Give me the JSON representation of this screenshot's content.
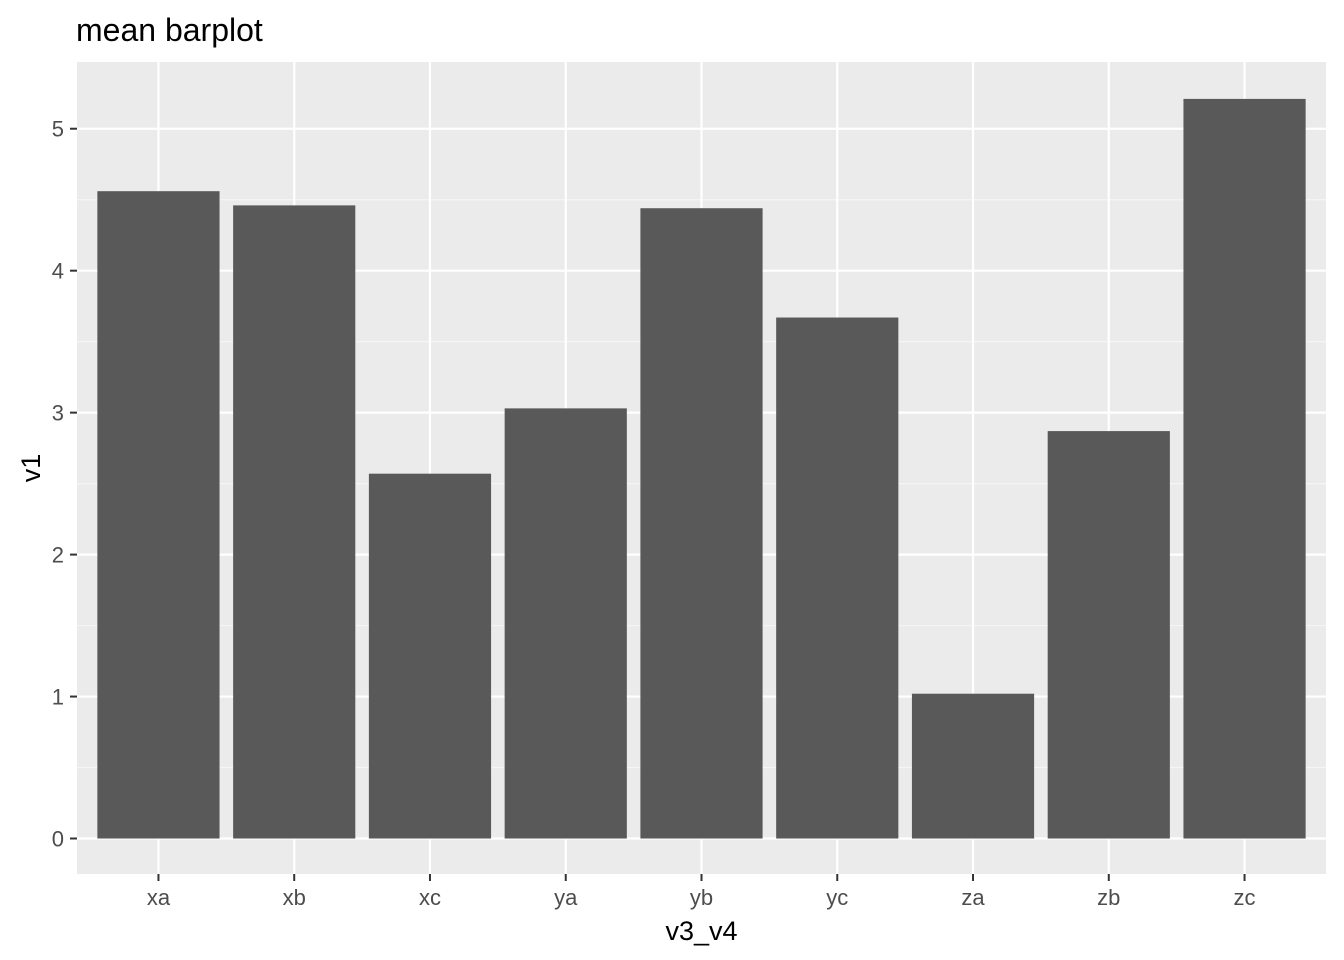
{
  "chart_data": {
    "type": "bar",
    "title": "mean barplot",
    "xlabel": "v3_v4",
    "ylabel": "v1",
    "categories": [
      "xa",
      "xb",
      "xc",
      "ya",
      "yb",
      "yc",
      "za",
      "zb",
      "zc"
    ],
    "values": [
      4.56,
      4.46,
      2.57,
      3.03,
      4.44,
      3.67,
      1.02,
      2.87,
      5.21
    ],
    "ylim": [
      -0.25,
      5.47
    ],
    "yticks": [
      0,
      1,
      2,
      3,
      4,
      5
    ],
    "grid": true,
    "legend": "none",
    "colors": {
      "panel_background": "#ebebeb",
      "grid_major": "#ffffff",
      "grid_minor": "#f5f5f5",
      "bar_fill": "#595959",
      "tick_text": "#4d4d4d",
      "tick_mark": "#333333"
    }
  }
}
